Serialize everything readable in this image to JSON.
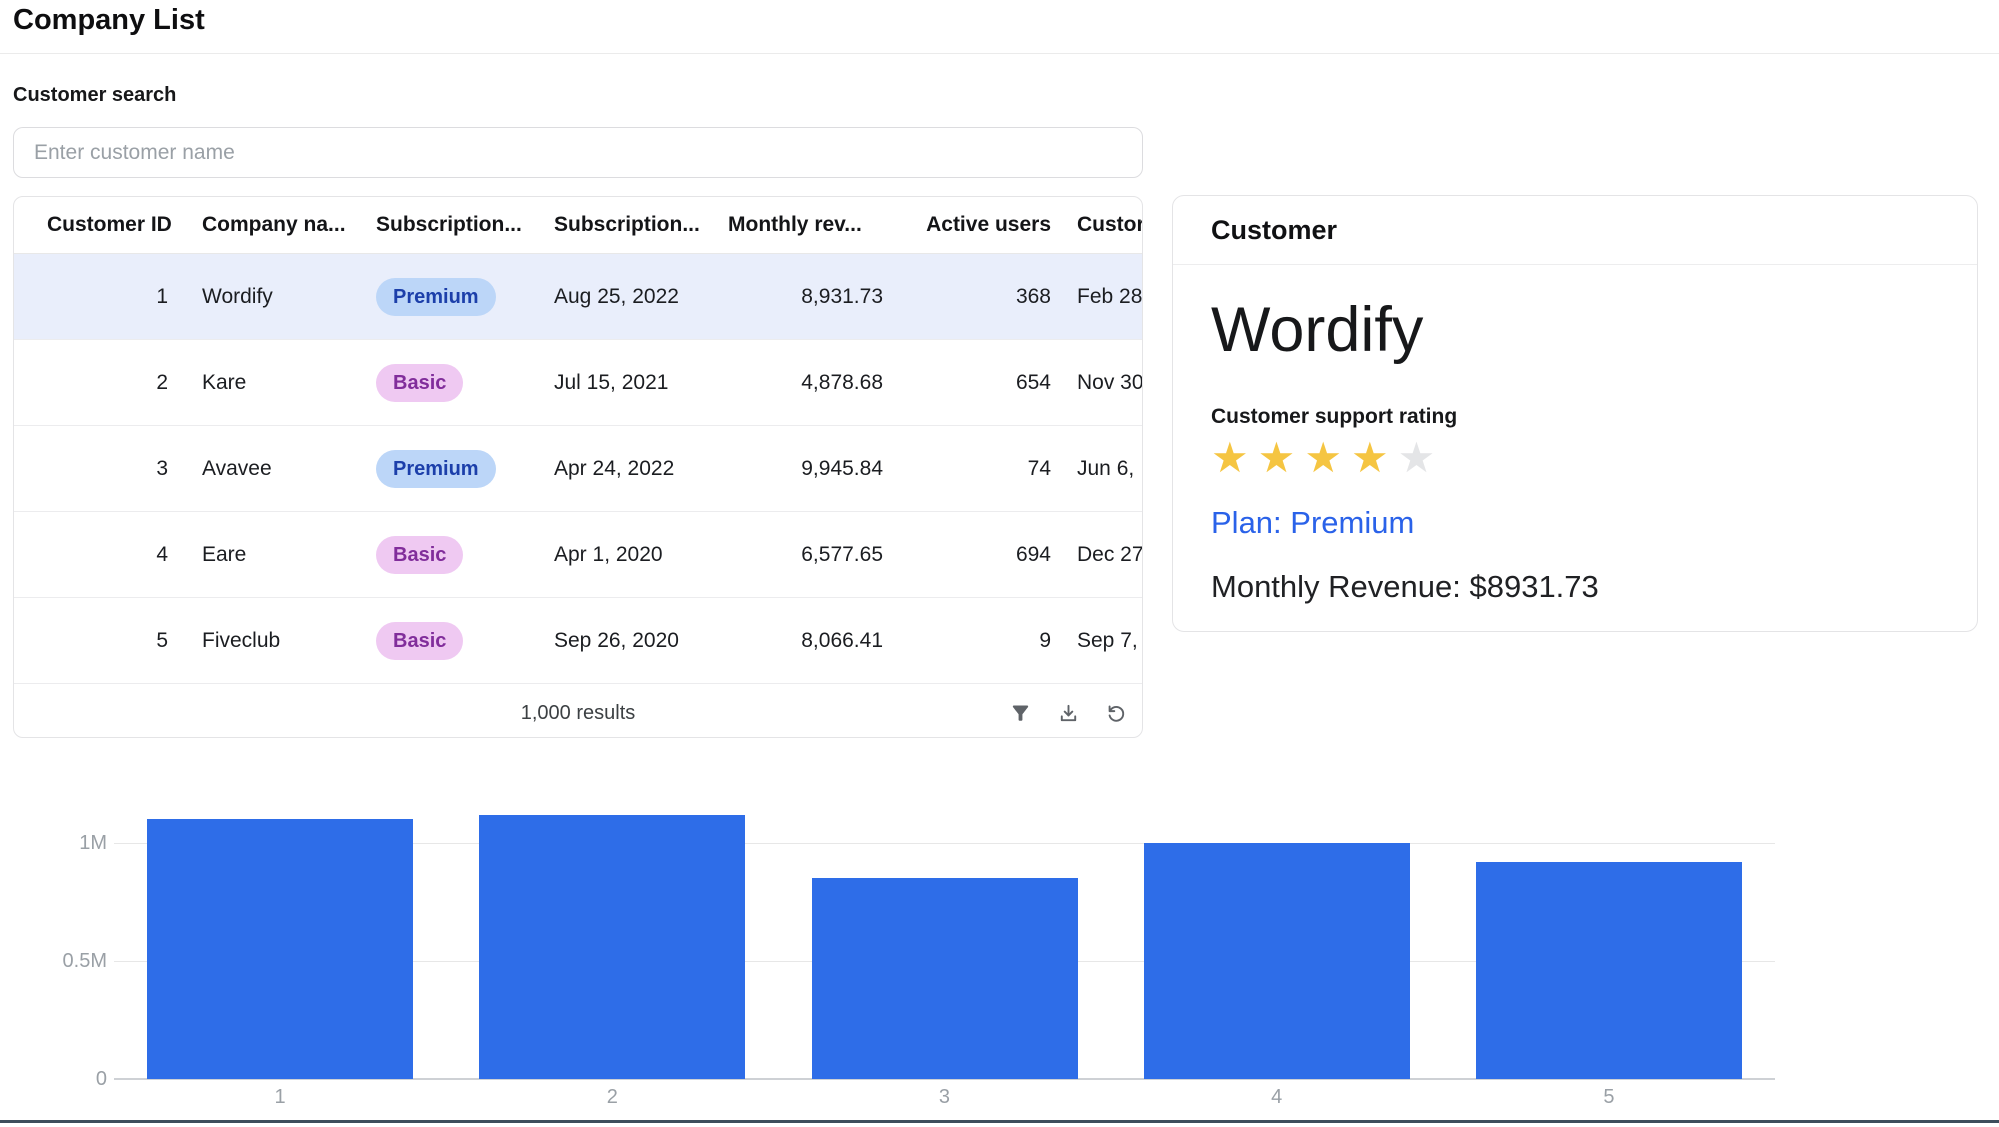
{
  "page": {
    "title": "Company List"
  },
  "search": {
    "label": "Customer search",
    "placeholder": "Enter customer name"
  },
  "table": {
    "columns": [
      "Customer ID",
      "Company na...",
      "Subscription...",
      "Subscription...",
      "Monthly rev...",
      "Active users",
      "Custor"
    ],
    "rows": [
      {
        "id": "1",
        "company": "Wordify",
        "plan": "Premium",
        "start_date": "Aug 25, 2022",
        "monthly_revenue": "8,931.73",
        "active_users": "368",
        "customer_since": "Feb 28"
      },
      {
        "id": "2",
        "company": "Kare",
        "plan": "Basic",
        "start_date": "Jul 15, 2021",
        "monthly_revenue": "4,878.68",
        "active_users": "654",
        "customer_since": "Nov 30"
      },
      {
        "id": "3",
        "company": "Avavee",
        "plan": "Premium",
        "start_date": "Apr 24, 2022",
        "monthly_revenue": "9,945.84",
        "active_users": "74",
        "customer_since": "Jun 6,"
      },
      {
        "id": "4",
        "company": "Eare",
        "plan": "Basic",
        "start_date": "Apr 1, 2020",
        "monthly_revenue": "6,577.65",
        "active_users": "694",
        "customer_since": "Dec 27"
      },
      {
        "id": "5",
        "company": "Fiveclub",
        "plan": "Basic",
        "start_date": "Sep 26, 2020",
        "monthly_revenue": "8,066.41",
        "active_users": "9",
        "customer_since": "Sep 7,"
      }
    ],
    "selected_row_index": 0,
    "footer": {
      "results_text": "1,000 results",
      "icon_names": [
        "filter-icon",
        "download-icon",
        "refresh-icon"
      ]
    }
  },
  "detail": {
    "heading": "Customer",
    "company_name": "Wordify",
    "rating_label": "Customer support rating",
    "rating": 4,
    "rating_max": 5,
    "plan_text": "Plan: Premium",
    "revenue_text": "Monthly Revenue: $8931.73"
  },
  "colors": {
    "bar": "#2e6de8",
    "sel_row": "#e9eefb",
    "prem_bg": "#bcd6f8",
    "prem_tx": "#1c3faa",
    "basic_bg": "#efc9f2",
    "basic_tx": "#812d9b",
    "plan": "#2a62e9",
    "star": "#f5c542",
    "star_off": "#e4e5e7",
    "icon": "#5f6368",
    "axis": "#9aa0a6",
    "grid": "#e7e7e7",
    "strip": "#3d4e5c"
  },
  "chart_data": {
    "type": "bar",
    "categories": [
      "1",
      "2",
      "3",
      "4",
      "5"
    ],
    "values": [
      1100000,
      1120000,
      850000,
      1000000,
      920000
    ],
    "title": "",
    "xlabel": "",
    "ylabel": "",
    "ylim": [
      0,
      1140000
    ],
    "yticks": [
      {
        "value": 0,
        "label": "0"
      },
      {
        "value": 500000,
        "label": "0.5M"
      },
      {
        "value": 1000000,
        "label": "1M"
      }
    ],
    "grid": true,
    "legend": "none",
    "bar_color": "#2e6de8"
  }
}
